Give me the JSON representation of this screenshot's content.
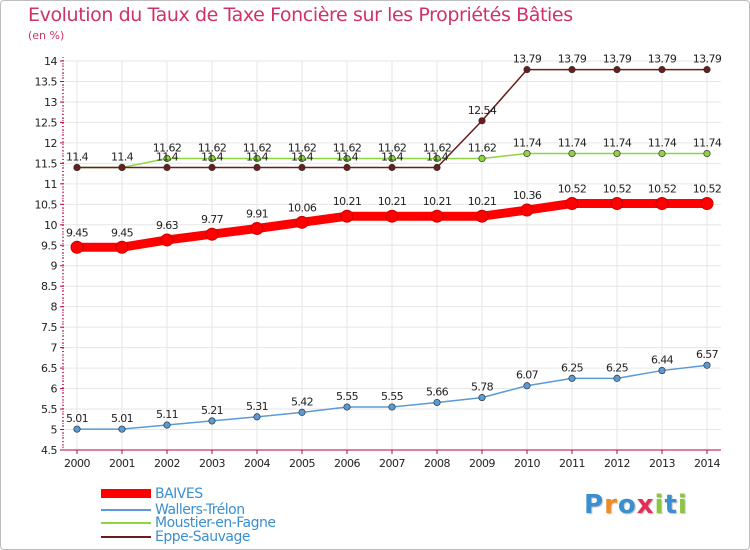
{
  "title": "Evolution du Taux de Taxe Foncière sur les Propriétés Bâties",
  "unit_label": "(en %)",
  "logo": {
    "text": "Proxiti",
    "letters": [
      "P",
      "r",
      "o",
      "x",
      "i",
      "t",
      "i"
    ],
    "colors": [
      "#3a8fd0",
      "#f08a24",
      "#3a8fd0",
      "#e0305a",
      "#8cc63f",
      "#3a8fd0",
      "#8cc63f"
    ]
  },
  "chart_data": {
    "type": "line",
    "title": "Evolution du Taux de Taxe Foncière sur les Propriétés Bâties",
    "ylabel": "(en %)",
    "xlabel": "",
    "x": [
      "2000",
      "2001",
      "2002",
      "2003",
      "2004",
      "2005",
      "2006",
      "2007",
      "2008",
      "2009",
      "2010",
      "2011",
      "2012",
      "2013",
      "2014"
    ],
    "ylim": [
      4.5,
      14
    ],
    "yticks": [
      "4.5",
      "5",
      "5.5",
      "6",
      "6.5",
      "7",
      "7.5",
      "8",
      "8.5",
      "9",
      "9.5",
      "10",
      "10.5",
      "11",
      "11.5",
      "12",
      "12.5",
      "13",
      "13.5",
      "14"
    ],
    "legend_position": "bottom-left",
    "series": [
      {
        "name": "BAIVES",
        "color": "#ff0000",
        "values": [
          9.45,
          9.45,
          9.63,
          9.77,
          9.91,
          10.06,
          10.21,
          10.21,
          10.21,
          10.21,
          10.36,
          10.52,
          10.52,
          10.52,
          10.52
        ],
        "labels": [
          "9.45",
          "9.45",
          "9.63",
          "9.77",
          "9.91",
          "10.06",
          "10.21",
          "10.21",
          "10.21",
          "10.21",
          "10.36",
          "10.52",
          "10.52",
          "10.52",
          "10.52"
        ]
      },
      {
        "name": "Wallers-Trélon",
        "color": "#5a9bd5",
        "values": [
          5.01,
          5.01,
          5.11,
          5.21,
          5.31,
          5.42,
          5.55,
          5.55,
          5.66,
          5.78,
          6.07,
          6.25,
          6.25,
          6.44,
          6.57
        ],
        "labels": [
          "5.01",
          "5.01",
          "5.11",
          "5.21",
          "5.31",
          "5.42",
          "5.55",
          "5.55",
          "5.66",
          "5.78",
          "6.07",
          "6.25",
          "6.25",
          "6.44",
          "6.57"
        ]
      },
      {
        "name": "Moustier-en-Fagne",
        "color": "#8ed63f",
        "values": [
          11.4,
          11.4,
          11.62,
          11.62,
          11.62,
          11.62,
          11.62,
          11.62,
          11.62,
          11.62,
          11.74,
          11.74,
          11.74,
          11.74,
          11.74
        ],
        "labels": [
          "",
          "",
          "11.62",
          "11.62",
          "11.62",
          "11.62",
          "11.62",
          "11.62",
          "11.62",
          "11.62",
          "11.74",
          "11.74",
          "11.74",
          "11.74",
          "11.74"
        ]
      },
      {
        "name": "Eppe-Sauvage",
        "color": "#6b1c1c",
        "values": [
          11.4,
          11.4,
          11.4,
          11.4,
          11.4,
          11.4,
          11.4,
          11.4,
          11.4,
          12.54,
          13.79,
          13.79,
          13.79,
          13.79,
          13.79
        ],
        "labels": [
          "11.4",
          "11.4",
          "11.4",
          "11.4",
          "11.4",
          "11.4",
          "11.4",
          "11.4",
          "11.4",
          "12.54",
          "13.79",
          "13.79",
          "13.79",
          "13.79",
          "13.79"
        ]
      }
    ]
  }
}
